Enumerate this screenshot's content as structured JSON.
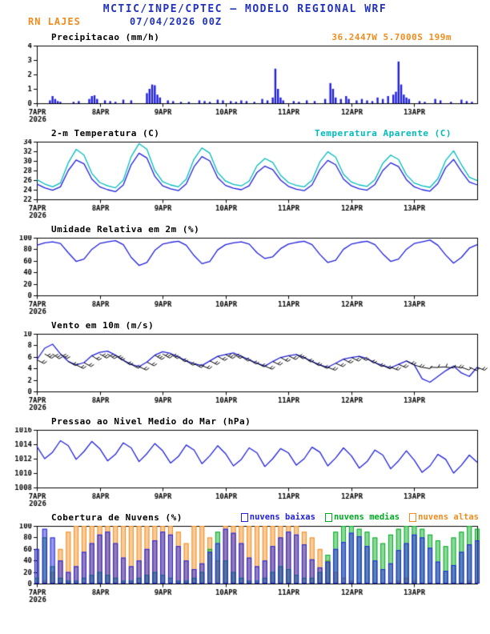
{
  "header": {
    "title": "MCTIC/INPE/CPTEC — MODELO REGIONAL WRF",
    "station": "RN LAJES",
    "run": "07/04/2026 00Z",
    "location": "36.2447W 5.7000S 199m"
  },
  "colors": {
    "blue": "#2233bb",
    "orange": "#f08c1e",
    "cyan": "#00bbbb",
    "green": "#00aa22",
    "line_blue": "#2020dd",
    "black": "#000000"
  },
  "x_axis": {
    "hours_total": 168,
    "tick_hours": [
      0,
      24,
      48,
      72,
      96,
      120,
      144
    ],
    "tick_labels": [
      "7APR",
      "8APR",
      "9APR",
      "10APR",
      "11APR",
      "12APR",
      "13APR"
    ],
    "year_label": "2026"
  },
  "chart_data": [
    {
      "id": "precipitation",
      "type": "bar",
      "title": "Precipitacao (mm/h)",
      "right_label": {
        "text": "36.2447W 5.7000S 199m",
        "color": "#f08c1e"
      },
      "ylim": [
        0,
        4
      ],
      "yticks": [
        0,
        1,
        2,
        3,
        4
      ],
      "series": [
        {
          "name": "precipitacao",
          "type": "bar",
          "color": "#2020dd",
          "x": [
            5,
            6,
            7,
            8,
            9,
            14,
            16,
            20,
            21,
            22,
            23,
            26,
            28,
            30,
            33,
            36,
            42,
            43,
            44,
            45,
            46,
            47,
            50,
            52,
            55,
            58,
            62,
            64,
            66,
            69,
            71,
            74,
            76,
            78,
            80,
            83,
            86,
            88,
            90,
            91,
            92,
            93,
            94,
            98,
            100,
            103,
            106,
            110,
            112,
            113,
            114,
            116,
            118,
            119,
            122,
            124,
            126,
            128,
            130,
            132,
            134,
            136,
            137,
            138,
            139,
            140,
            141,
            142,
            146,
            148,
            152,
            154,
            158,
            162,
            164,
            166
          ],
          "values": [
            0.2,
            0.5,
            0.3,
            0.15,
            0.1,
            0.1,
            0.15,
            0.3,
            0.5,
            0.55,
            0.3,
            0.2,
            0.15,
            0.1,
            0.25,
            0.2,
            0.7,
            1.0,
            1.3,
            1.25,
            0.6,
            0.4,
            0.2,
            0.15,
            0.1,
            0.1,
            0.2,
            0.15,
            0.1,
            0.25,
            0.2,
            0.15,
            0.1,
            0.2,
            0.15,
            0.1,
            0.3,
            0.2,
            0.4,
            2.4,
            1.0,
            0.4,
            0.2,
            0.15,
            0.1,
            0.2,
            0.15,
            0.3,
            1.4,
            1.0,
            0.4,
            0.3,
            0.5,
            0.3,
            0.2,
            0.3,
            0.2,
            0.15,
            0.4,
            0.3,
            0.5,
            0.6,
            0.8,
            2.9,
            1.3,
            0.6,
            0.4,
            0.3,
            0.15,
            0.1,
            0.3,
            0.2,
            0.1,
            0.25,
            0.15,
            0.1
          ]
        }
      ]
    },
    {
      "id": "temperature-2m",
      "type": "line",
      "title": "2-m Temperatura (C)",
      "right_label": {
        "text": "Temperatura Aparente (C)",
        "color": "#00bbbb"
      },
      "ylim": [
        22,
        34
      ],
      "yticks": [
        22,
        24,
        26,
        28,
        30,
        32,
        34
      ],
      "x_step": 3,
      "series": [
        {
          "name": "Temperatura Aparente (C)",
          "type": "line",
          "color": "#00bbbb",
          "values": [
            26.1,
            25.2,
            24.6,
            25.4,
            29.6,
            32.4,
            31.2,
            27.4,
            25.5,
            24.8,
            24.4,
            26.0,
            30.9,
            33.6,
            32.4,
            28.0,
            25.7,
            25.0,
            24.6,
            26.2,
            30.4,
            32.7,
            31.6,
            27.6,
            25.8,
            25.1,
            24.8,
            25.8,
            29.0,
            30.5,
            29.7,
            27.0,
            25.5,
            24.9,
            24.6,
            26.0,
            29.8,
            31.9,
            30.8,
            27.2,
            25.6,
            25.0,
            24.7,
            26.1,
            29.5,
            31.2,
            30.3,
            27.1,
            25.4,
            24.8,
            24.5,
            26.3,
            30.1,
            32.1,
            29.2,
            26.6,
            25.9
          ]
        },
        {
          "name": "2-m Temperatura (C)",
          "type": "line",
          "color": "#2020dd",
          "values": [
            25.2,
            24.4,
            23.9,
            24.6,
            28.0,
            30.2,
            29.4,
            26.2,
            24.6,
            24.0,
            23.6,
            25.0,
            29.2,
            31.6,
            30.6,
            26.8,
            24.8,
            24.2,
            23.8,
            25.2,
            28.8,
            30.9,
            30.0,
            26.5,
            24.9,
            24.3,
            24.0,
            24.8,
            27.6,
            28.9,
            28.2,
            26.0,
            24.7,
            24.1,
            23.8,
            25.0,
            28.2,
            30.1,
            29.2,
            26.2,
            24.8,
            24.2,
            23.9,
            25.1,
            28.0,
            29.6,
            28.8,
            26.1,
            24.6,
            24.0,
            23.7,
            25.3,
            28.6,
            30.3,
            27.8,
            25.6,
            25.0
          ]
        }
      ]
    },
    {
      "id": "relative-humidity-2m",
      "type": "line",
      "title": "Umidade Relativa em 2m (%)",
      "ylim": [
        0,
        100
      ],
      "yticks": [
        0,
        20,
        40,
        60,
        80,
        100
      ],
      "x_step": 3,
      "series": [
        {
          "name": "umidade relativa",
          "type": "line",
          "color": "#2020dd",
          "values": [
            87,
            91,
            93,
            90,
            74,
            59,
            63,
            80,
            90,
            93,
            95,
            88,
            66,
            52,
            57,
            78,
            89,
            92,
            94,
            87,
            69,
            55,
            59,
            79,
            88,
            91,
            93,
            89,
            74,
            64,
            67,
            81,
            89,
            92,
            94,
            88,
            71,
            57,
            61,
            80,
            89,
            92,
            94,
            88,
            72,
            59,
            63,
            80,
            90,
            93,
            96,
            87,
            70,
            56,
            66,
            82,
            88
          ]
        }
      ]
    },
    {
      "id": "wind-10m",
      "type": "line",
      "title": "Vento em 10m (m/s)",
      "ylim": [
        0,
        10
      ],
      "yticks": [
        0,
        2,
        4,
        6,
        8,
        10
      ],
      "x_step": 3,
      "series": [
        {
          "name": "velocidade do vento",
          "type": "line",
          "color": "#2020dd",
          "values": [
            5.5,
            7.5,
            8.2,
            6.5,
            5.2,
            4.6,
            5.0,
            6.2,
            6.8,
            7.0,
            6.3,
            5.4,
            4.7,
            4.3,
            5.1,
            6.3,
            6.9,
            6.6,
            6.0,
            5.3,
            4.8,
            4.5,
            5.3,
            6.1,
            6.4,
            6.7,
            6.1,
            5.5,
            4.9,
            4.4,
            5.2,
            5.9,
            6.2,
            6.4,
            5.9,
            5.2,
            4.6,
            4.2,
            4.9,
            5.6,
            5.9,
            6.1,
            5.7,
            5.0,
            4.5,
            4.1,
            4.7,
            5.3,
            4.6,
            2.2,
            1.6,
            2.6,
            3.6,
            4.4,
            3.2,
            2.6,
            4.2
          ]
        },
        {
          "name": "barbelas de vento",
          "type": "barbs",
          "color": "#000000",
          "values": [
            5.5,
            7.5,
            8.2,
            6.5,
            5.2,
            4.6,
            5.0,
            6.2,
            6.8,
            7.0,
            6.3,
            5.4,
            4.7,
            4.3,
            5.1,
            6.3,
            6.9,
            6.6,
            6.0,
            5.3,
            4.8,
            4.5,
            5.3,
            6.1,
            6.4,
            6.7,
            6.1,
            5.5,
            4.9,
            4.4,
            5.2,
            5.9,
            6.2,
            6.4,
            5.9,
            5.2,
            4.6,
            4.2,
            4.9,
            5.6,
            5.9,
            6.1,
            5.7,
            5.0,
            4.5,
            4.1,
            4.7,
            5.3,
            4.6,
            2.2,
            1.6,
            2.6,
            3.6,
            4.4,
            3.2,
            2.6,
            4.2
          ],
          "dirs": [
            118,
            122,
            126,
            124,
            120,
            116,
            119,
            123,
            121,
            125,
            128,
            124,
            119,
            115,
            118,
            122,
            120,
            124,
            127,
            123,
            118,
            114,
            117,
            121,
            119,
            123,
            126,
            122,
            117,
            113,
            116,
            120,
            118,
            122,
            125,
            121,
            116,
            112,
            115,
            119,
            117,
            121,
            124,
            120,
            115,
            111,
            114,
            118,
            108,
            100,
            92,
            88,
            95,
            104,
            110,
            114,
            112
          ]
        }
      ]
    },
    {
      "id": "mean-sea-level-pressure",
      "type": "line",
      "title": "Pressao ao Nivel Medio do Mar (hPa)",
      "ylim": [
        1008,
        1016
      ],
      "yticks": [
        1008,
        1010,
        1012,
        1014,
        1016
      ],
      "x_step": 3,
      "series": [
        {
          "name": "pressao",
          "type": "line",
          "color": "#2020dd",
          "values": [
            1013.7,
            1012.0,
            1012.9,
            1014.5,
            1013.8,
            1011.9,
            1013.0,
            1014.4,
            1013.4,
            1011.7,
            1012.6,
            1014.2,
            1013.5,
            1011.6,
            1012.7,
            1014.1,
            1013.1,
            1011.4,
            1012.3,
            1013.9,
            1013.2,
            1011.3,
            1012.4,
            1013.8,
            1012.7,
            1011.0,
            1011.9,
            1013.5,
            1012.8,
            1010.9,
            1012.0,
            1013.4,
            1012.8,
            1011.1,
            1012.0,
            1013.6,
            1012.9,
            1011.0,
            1012.1,
            1013.5,
            1012.4,
            1010.7,
            1011.6,
            1013.2,
            1012.5,
            1010.6,
            1011.7,
            1013.1,
            1011.8,
            1010.1,
            1011.0,
            1012.6,
            1011.9,
            1010.0,
            1011.1,
            1012.5,
            1011.5
          ]
        }
      ]
    },
    {
      "id": "cloud-cover",
      "type": "bar",
      "title": "Cobertura de Nuvens (%)",
      "legend": [
        {
          "label": "nuvens baixas",
          "color": "#2020dd"
        },
        {
          "label": "nuvens medias",
          "color": "#00aa22"
        },
        {
          "label": "nuvens altas",
          "color": "#f08c1e"
        }
      ],
      "ylim": [
        0,
        100
      ],
      "yticks": [
        0,
        20,
        40,
        60,
        80,
        100
      ],
      "x_step": 3,
      "series": [
        {
          "name": "nuvens altas",
          "type": "cloudbar",
          "color": "#f08c1e",
          "values": [
            0,
            5,
            20,
            60,
            90,
            100,
            100,
            100,
            100,
            100,
            100,
            100,
            100,
            100,
            100,
            100,
            100,
            100,
            90,
            70,
            100,
            100,
            80,
            40,
            100,
            100,
            100,
            100,
            100,
            100,
            100,
            100,
            100,
            100,
            90,
            80,
            60,
            40,
            20,
            10,
            5,
            0,
            0,
            0,
            0,
            0,
            5,
            10,
            5,
            0,
            0,
            0,
            0,
            0,
            0,
            5,
            0
          ]
        },
        {
          "name": "nuvens medias",
          "type": "cloudbar",
          "color": "#00aa22",
          "values": [
            10,
            80,
            30,
            10,
            5,
            5,
            10,
            15,
            20,
            15,
            10,
            5,
            5,
            10,
            15,
            20,
            15,
            10,
            5,
            5,
            10,
            20,
            60,
            90,
            40,
            20,
            10,
            5,
            5,
            10,
            20,
            30,
            25,
            15,
            10,
            10,
            20,
            50,
            90,
            100,
            100,
            95,
            90,
            80,
            70,
            85,
            95,
            100,
            100,
            95,
            85,
            75,
            65,
            80,
            90,
            100,
            95
          ]
        },
        {
          "name": "nuvens baixas",
          "type": "cloudbar",
          "color": "#2020dd",
          "values": [
            60,
            95,
            80,
            40,
            20,
            30,
            55,
            70,
            85,
            90,
            70,
            45,
            30,
            40,
            60,
            75,
            90,
            85,
            65,
            40,
            25,
            35,
            55,
            70,
            95,
            88,
            70,
            45,
            30,
            40,
            65,
            80,
            90,
            85,
            68,
            42,
            28,
            38,
            60,
            72,
            88,
            82,
            65,
            40,
            25,
            35,
            58,
            70,
            85,
            80,
            62,
            38,
            22,
            32,
            55,
            68,
            75
          ]
        }
      ]
    }
  ]
}
